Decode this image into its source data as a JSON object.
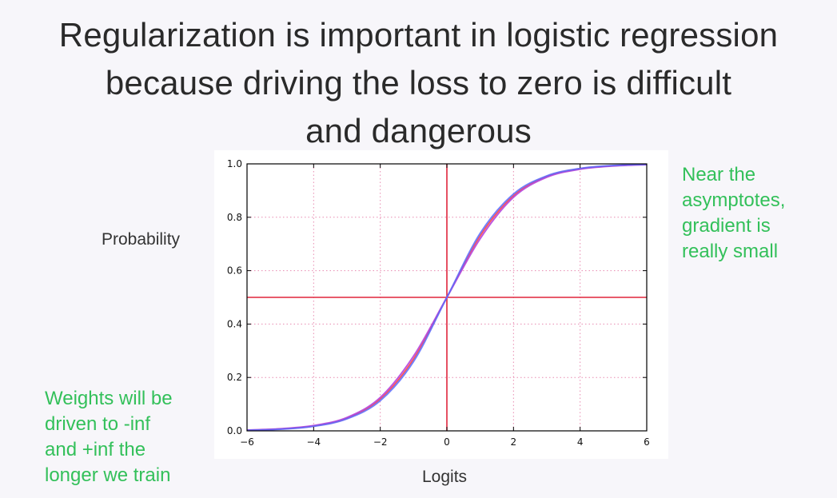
{
  "title_lines": [
    "Regularization is important in logistic regression",
    "because driving the loss to zero is difficult",
    "and dangerous"
  ],
  "annotations": {
    "right_lines": [
      "Near the",
      "asymptotes,",
      "gradient is",
      "really small"
    ],
    "left_lines": [
      "Weights will be",
      "driven to -inf",
      "and +inf the",
      "longer we train"
    ]
  },
  "chart_data": {
    "type": "line",
    "xlabel": "Logits",
    "ylabel": "Probability",
    "xlim": [
      -6,
      6
    ],
    "ylim": [
      0,
      1
    ],
    "xticks": [
      -6,
      -4,
      -2,
      0,
      2,
      4,
      6
    ],
    "xtick_labels": [
      "−6",
      "−4",
      "−2",
      "0",
      "2",
      "4",
      "6"
    ],
    "yticks": [
      0,
      0.2,
      0.4,
      0.6,
      0.8,
      1.0
    ],
    "ytick_labels": [
      "0.0",
      "0.2",
      "0.4",
      "0.6",
      "0.8",
      "1.0"
    ],
    "grid": true,
    "x": [
      -6,
      -5,
      -4,
      -3,
      -2,
      -1,
      0,
      1,
      2,
      3,
      4,
      5,
      6
    ],
    "series": [
      {
        "values": [
          0.002,
          0.007,
          0.018,
          0.047,
          0.119,
          0.269,
          0.5,
          0.731,
          0.881,
          0.953,
          0.982,
          0.993,
          0.998
        ]
      },
      {
        "values": [
          0.003,
          0.008,
          0.02,
          0.05,
          0.125,
          0.28,
          0.5,
          0.72,
          0.875,
          0.95,
          0.98,
          0.992,
          0.997
        ]
      },
      {
        "values": [
          0.002,
          0.006,
          0.017,
          0.045,
          0.113,
          0.26,
          0.5,
          0.74,
          0.887,
          0.955,
          0.983,
          0.994,
          0.998
        ]
      }
    ],
    "reference_lines": {
      "vertical_x": 0,
      "horizontal_y": 0.5
    },
    "colors": {
      "curves": [
        "#ff3b3b",
        "#b23bd9",
        "#5a6cff"
      ],
      "reference": "#e0253c",
      "grid": "#e88ab0"
    }
  }
}
